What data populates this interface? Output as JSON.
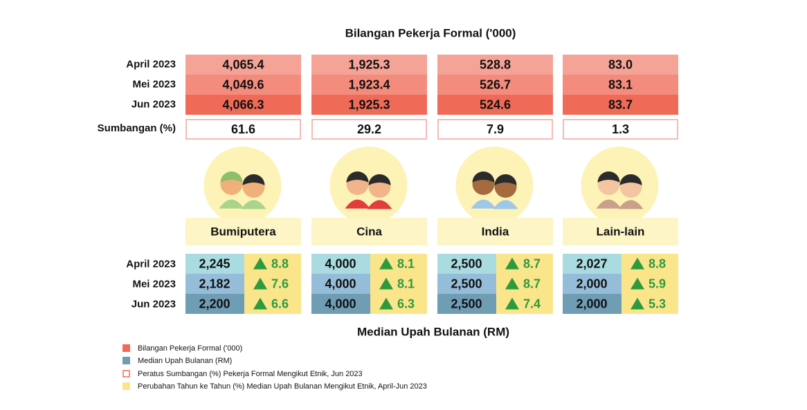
{
  "top_title": "Bilangan Pekerja Formal ('000)",
  "row_labels": [
    "April 2023",
    "Mei 2023",
    "Jun 2023"
  ],
  "share_label": "Sumbangan (%)",
  "groups": [
    {
      "name": "Bumiputera",
      "workers": [
        "4,065.4",
        "4,049.6",
        "4,066.3"
      ],
      "share": "61.6",
      "wages": [
        "2,245",
        "2,182",
        "2,200"
      ],
      "yoy": [
        "8.8",
        "7.6",
        "6.6"
      ]
    },
    {
      "name": "Cina",
      "workers": [
        "1,925.3",
        "1,923.4",
        "1,925.3"
      ],
      "share": "29.2",
      "wages": [
        "4,000",
        "4,000",
        "4,000"
      ],
      "yoy": [
        "8.1",
        "8.1",
        "6.3"
      ]
    },
    {
      "name": "India",
      "workers": [
        "528.8",
        "526.7",
        "524.6"
      ],
      "share": "7.9",
      "wages": [
        "2,500",
        "2,500",
        "2,500"
      ],
      "yoy": [
        "8.7",
        "8.7",
        "7.4"
      ]
    },
    {
      "name": "Lain-lain",
      "workers": [
        "83.0",
        "83.1",
        "83.7"
      ],
      "share": "1.3",
      "wages": [
        "2,027",
        "2,000",
        "2,000"
      ],
      "yoy": [
        "8.8",
        "5.9",
        "5.3"
      ]
    }
  ],
  "bottom_title": "Median Upah Bulanan (RM)",
  "legend": [
    "Bilangan Pekerja Formal ('000)",
    "Median Upah Bulanan (RM)",
    "Peratus Sumbangan (%) Pekerja Formal Mengikut Etnik, Jun 2023",
    "Perubahan Tahun ke Tahun (%) Median Upah Bulanan Mengikut Etnik, April-Jun 2023"
  ]
}
